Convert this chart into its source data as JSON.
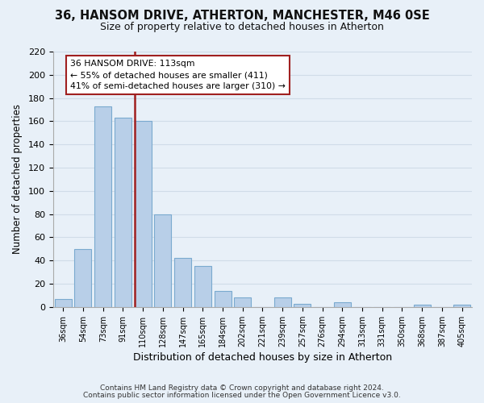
{
  "title": "36, HANSOM DRIVE, ATHERTON, MANCHESTER, M46 0SE",
  "subtitle": "Size of property relative to detached houses in Atherton",
  "xlabel": "Distribution of detached houses by size in Atherton",
  "ylabel": "Number of detached properties",
  "bar_labels": [
    "36sqm",
    "54sqm",
    "73sqm",
    "91sqm",
    "110sqm",
    "128sqm",
    "147sqm",
    "165sqm",
    "184sqm",
    "202sqm",
    "221sqm",
    "239sqm",
    "257sqm",
    "276sqm",
    "294sqm",
    "313sqm",
    "331sqm",
    "350sqm",
    "368sqm",
    "387sqm",
    "405sqm"
  ],
  "bar_values": [
    7,
    50,
    173,
    163,
    160,
    80,
    42,
    35,
    14,
    8,
    0,
    8,
    3,
    0,
    4,
    0,
    0,
    0,
    2,
    0,
    2
  ],
  "highlight_index": 4,
  "bar_color_normal": "#b8cfe8",
  "bar_edge_color": "#7aaacf",
  "vline_color": "#a02020",
  "grid_color": "#d0dce8",
  "background_color": "#e8f0f8",
  "annotation_text_line1": "36 HANSOM DRIVE: 113sqm",
  "annotation_text_line2": "← 55% of detached houses are smaller (411)",
  "annotation_text_line3": "41% of semi-detached houses are larger (310) →",
  "annotation_box_color": "#ffffff",
  "annotation_box_edge": "#a02020",
  "ylim": [
    0,
    220
  ],
  "yticks": [
    0,
    20,
    40,
    60,
    80,
    100,
    120,
    140,
    160,
    180,
    200,
    220
  ],
  "footer_line1": "Contains HM Land Registry data © Crown copyright and database right 2024.",
  "footer_line2": "Contains public sector information licensed under the Open Government Licence v3.0."
}
